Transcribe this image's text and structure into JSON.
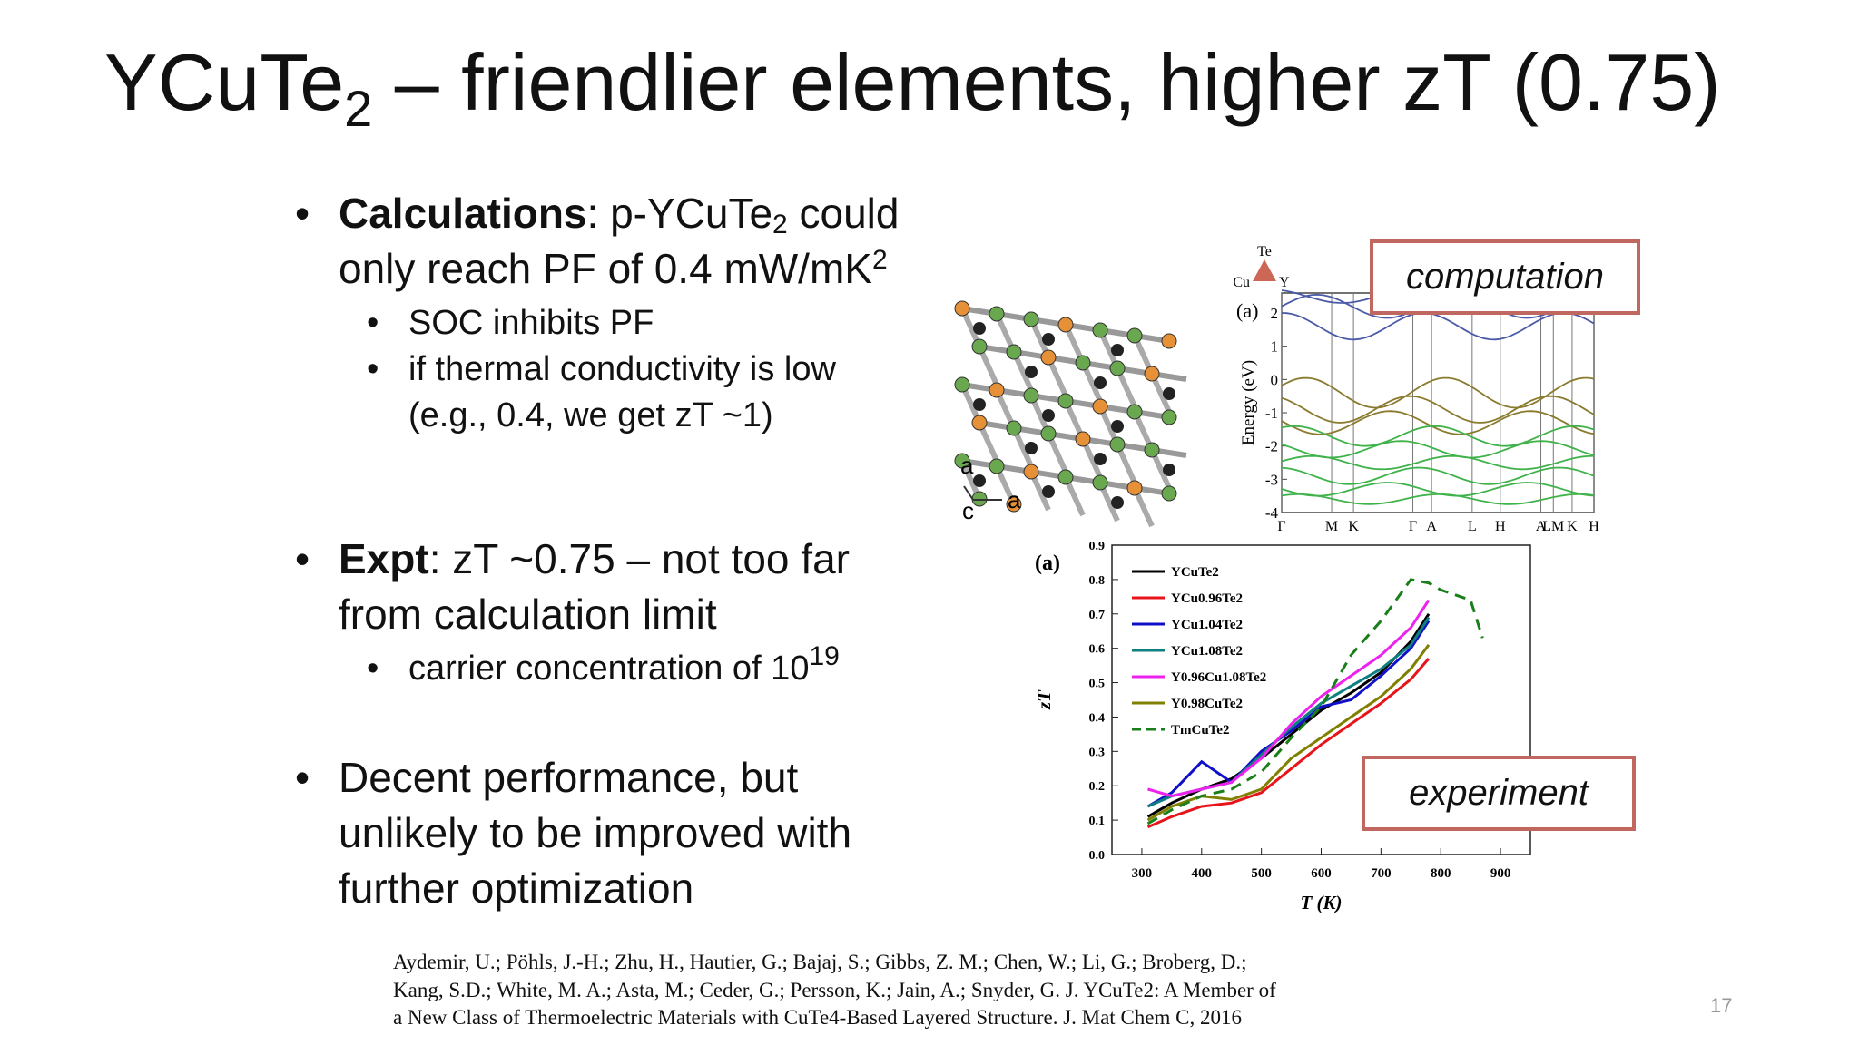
{
  "title": {
    "main": "YCuTe",
    "sub": "2",
    "rest": " – friendlier elements, higher zT (0.75)"
  },
  "bullets": [
    {
      "label": "Calculations",
      "text": [
        ": p-YCuTe",
        "2",
        " could only reach PF of 0.4 mW/mK",
        "2"
      ],
      "sub_bullets": [
        [
          "SOC inhibits PF"
        ],
        [
          "if thermal conductivity is low (e.g., 0.4, we get zT ~1)"
        ]
      ]
    },
    {
      "label": "Expt",
      "text": [
        ": zT ~0.75 – not too far from calculation limit"
      ],
      "sub_bullets": [
        [
          "carrier concentration of 10",
          "19"
        ]
      ]
    },
    {
      "text": [
        "Decent performance, but unlikely to be improved with further optimization"
      ]
    }
  ],
  "structure": {
    "axes": [
      "a",
      "c",
      "a"
    ]
  },
  "band_structure": {
    "panel": "(a)",
    "legend": [
      "Te",
      "Cu",
      "Y"
    ],
    "ylabel": "Energy (eV)",
    "ylim": [
      -4,
      2.6
    ],
    "yticks": [
      2,
      1,
      0,
      -1,
      -2,
      -3,
      -4
    ],
    "kpoints": [
      "Γ",
      "M",
      "K",
      "Γ",
      "A",
      "L",
      "H",
      "A",
      "LM",
      "K",
      "H"
    ]
  },
  "tags": [
    "computation",
    "experiment"
  ],
  "chart_data": {
    "type": "line",
    "panel": "(a)",
    "xlabel": "T (K)",
    "ylabel": "zT",
    "x": [
      310,
      350,
      400,
      450,
      500,
      550,
      600,
      650,
      700,
      750,
      780,
      800,
      850,
      870
    ],
    "xlim": [
      250,
      950
    ],
    "xticks": [
      300,
      400,
      500,
      600,
      700,
      800,
      900
    ],
    "ylim": [
      0,
      0.9
    ],
    "yticks": [
      {
        "value": 0,
        "label": "0.0"
      },
      {
        "value": 0.1,
        "label": "0.1"
      },
      {
        "value": 0.2,
        "label": "0.2"
      },
      {
        "value": 0.3,
        "label": "0.3"
      },
      {
        "value": 0.4,
        "label": "0.4"
      },
      {
        "value": 0.5,
        "label": "0.5"
      },
      {
        "value": 0.6,
        "label": "0.6"
      },
      {
        "value": 0.7,
        "label": "0.7"
      },
      {
        "value": 0.8,
        "label": "0.8"
      },
      {
        "value": 0.9,
        "label": "0.9"
      }
    ],
    "series": [
      {
        "name": "YCuTe2",
        "color": "#000000",
        "values": [
          0.11,
          0.15,
          0.19,
          0.22,
          0.28,
          0.35,
          0.42,
          0.47,
          0.53,
          0.62,
          0.7,
          null,
          null,
          null
        ]
      },
      {
        "name": "YCu0.96Te2",
        "color": "#e8141c",
        "values": [
          0.08,
          0.11,
          0.14,
          0.15,
          0.18,
          0.25,
          0.32,
          0.38,
          0.44,
          0.51,
          0.57,
          null,
          null,
          null
        ]
      },
      {
        "name": "YCu1.04Te2",
        "color": "#1010c8",
        "values": [
          0.14,
          0.18,
          0.27,
          0.21,
          0.3,
          0.36,
          0.43,
          0.45,
          0.52,
          0.6,
          0.68,
          null,
          null,
          null
        ]
      },
      {
        "name": "YCu1.08Te2",
        "color": "#0f7f7f",
        "values": [
          0.14,
          0.17,
          0.19,
          0.21,
          0.29,
          0.37,
          0.44,
          0.49,
          0.54,
          0.61,
          0.69,
          null,
          null,
          null
        ]
      },
      {
        "name": "Y0.96Cu1.08Te2",
        "color": "#ee22ee",
        "values": [
          0.19,
          0.17,
          0.19,
          0.21,
          0.28,
          0.38,
          0.46,
          0.52,
          0.58,
          0.66,
          0.74,
          null,
          null,
          null
        ]
      },
      {
        "name": "Y0.98CuTe2",
        "color": "#808000",
        "values": [
          0.1,
          0.14,
          0.17,
          0.16,
          0.19,
          0.28,
          0.34,
          0.4,
          0.46,
          0.54,
          0.61,
          null,
          null,
          null
        ]
      },
      {
        "name": "TmCuTe2",
        "color": "#1a7f1a",
        "dashed": true,
        "values": [
          0.09,
          0.13,
          0.17,
          0.19,
          0.24,
          0.34,
          0.43,
          0.58,
          0.68,
          0.8,
          0.79,
          0.77,
          0.74,
          0.63
        ]
      }
    ]
  },
  "citation": [
    "Aydemir, U.; Pöhls, J.-H.; Zhu, H., Hautier, G.; Bajaj, S.; Gibbs, Z. M.; Chen, W.; Li, G.; Broberg, D.;",
    "Kang, S.D.; White, M. A.; Asta, M.; Ceder, G.; Persson, K.; Jain, A.; Snyder, G. J. YCuTe2: A Member of",
    "a New Class of Thermoelectric Materials with CuTe4-Based Layered Structure. J. Mat Chem C, 2016"
  ],
  "page_number": "17"
}
